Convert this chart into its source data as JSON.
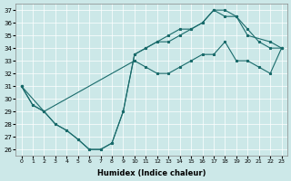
{
  "xlabel": "Humidex (Indice chaleur)",
  "xlim": [
    -0.5,
    23.5
  ],
  "ylim": [
    25.5,
    37.5
  ],
  "xticks": [
    0,
    1,
    2,
    3,
    4,
    5,
    6,
    7,
    8,
    9,
    10,
    11,
    12,
    13,
    14,
    15,
    16,
    17,
    18,
    19,
    20,
    21,
    22,
    23
  ],
  "yticks": [
    26,
    27,
    28,
    29,
    30,
    31,
    32,
    33,
    34,
    35,
    36,
    37
  ],
  "bg_color": "#cce8e8",
  "line_color": "#1a6b6b",
  "line1_x": [
    0,
    1,
    2,
    3,
    4,
    5,
    6,
    7,
    8,
    9,
    10,
    11,
    12,
    13,
    14,
    15,
    16,
    17,
    18,
    19,
    20,
    22,
    23
  ],
  "line1_y": [
    31.0,
    29.5,
    29.0,
    28.0,
    27.5,
    26.8,
    26.0,
    26.0,
    26.5,
    29.0,
    33.5,
    34.0,
    34.5,
    34.5,
    35.0,
    35.5,
    36.0,
    37.0,
    37.0,
    36.5,
    35.0,
    34.5,
    34.0
  ],
  "line2_x": [
    0,
    1,
    2,
    3,
    4,
    5,
    6,
    7,
    8,
    9,
    10,
    11,
    12,
    13,
    14,
    15,
    16,
    17,
    18,
    19,
    20,
    21,
    22,
    23
  ],
  "line2_y": [
    31.0,
    29.5,
    29.0,
    28.0,
    27.5,
    26.8,
    26.0,
    26.0,
    26.5,
    29.0,
    33.5,
    34.0,
    34.5,
    35.0,
    35.5,
    35.5,
    36.0,
    37.0,
    36.5,
    36.5,
    35.5,
    34.5,
    34.0,
    34.0
  ],
  "line3_x": [
    0,
    2,
    10,
    11,
    12,
    13,
    14,
    15,
    16,
    17,
    18,
    19,
    20,
    21,
    22,
    23
  ],
  "line3_y": [
    31.0,
    29.0,
    33.0,
    32.5,
    32.0,
    32.0,
    32.5,
    33.0,
    33.5,
    33.5,
    34.5,
    33.0,
    33.0,
    32.5,
    32.0,
    34.0
  ],
  "figsize": [
    3.2,
    2.0
  ],
  "dpi": 100
}
